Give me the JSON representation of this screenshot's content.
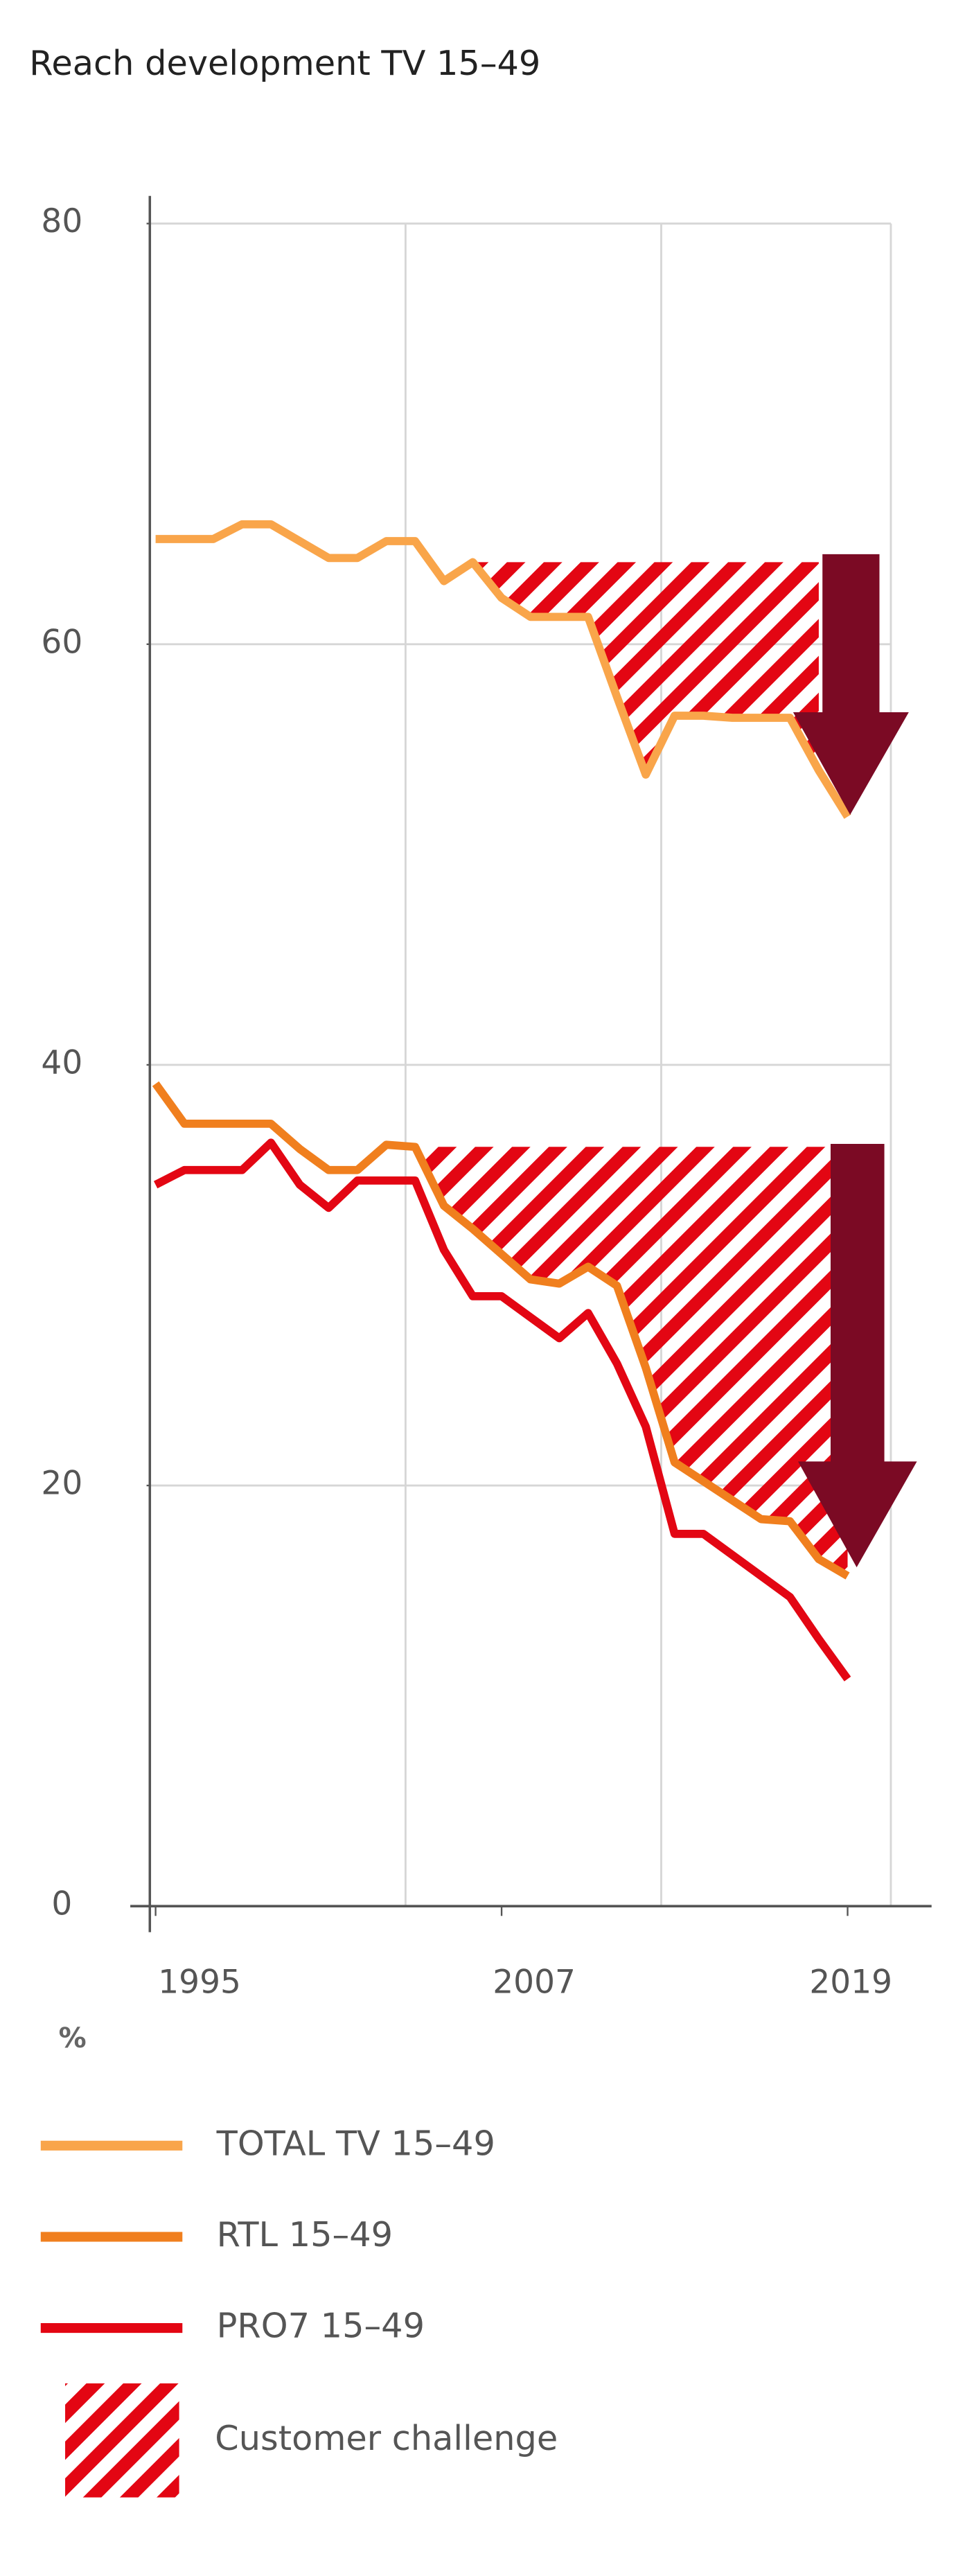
{
  "chart_data": {
    "type": "line",
    "title": "Reach development TV 15–49",
    "y_unit": "%",
    "x": [
      1995,
      1996,
      1997,
      1998,
      1999,
      2000,
      2001,
      2002,
      2003,
      2004,
      2005,
      2006,
      2007,
      2008,
      2009,
      2010,
      2011,
      2012,
      2013,
      2014,
      2015,
      2016,
      2017,
      2018,
      2019
    ],
    "xlim": [
      1994.8,
      2020.5
    ],
    "xticks": [
      1995,
      2007,
      2019
    ],
    "ylim": [
      0,
      80
    ],
    "yticks": [
      0,
      20,
      40,
      60,
      80
    ],
    "grid": true,
    "series": [
      {
        "name": "TOTAL TV 15–49",
        "color": "#f9a54a",
        "values": [
          65,
          65,
          65,
          65.7,
          65.7,
          64.9,
          64.1,
          64.1,
          64.9,
          64.9,
          63.0,
          63.9,
          62.2,
          61.3,
          61.3,
          61.3,
          57.5,
          53.8,
          56.6,
          56.6,
          56.5,
          56.5,
          56.5,
          54.0,
          51.8
        ]
      },
      {
        "name": "RTL 15–49",
        "color": "#f07f1e",
        "values": [
          39.1,
          37.2,
          37.2,
          37.2,
          37.2,
          36.0,
          35.0,
          35.0,
          36.2,
          36.1,
          33.3,
          32.2,
          31.0,
          29.8,
          29.6,
          30.4,
          29.5,
          25.6,
          21.1,
          20.2,
          19.3,
          18.4,
          18.3,
          16.5,
          15.7
        ]
      },
      {
        "name": "PRO7 15–49",
        "color": "#e30613",
        "values": [
          34.3,
          35.0,
          35.0,
          35.0,
          36.3,
          34.3,
          33.2,
          34.5,
          34.5,
          34.5,
          31.2,
          29.0,
          29.0,
          28.0,
          27.0,
          28.2,
          25.8,
          22.8,
          17.7,
          17.7,
          16.7,
          15.7,
          14.7,
          12.7,
          10.8
        ]
      }
    ],
    "hatch_label": "Customer challenge",
    "hatch_color": "#e30613",
    "arrow_color": "#7b0a24"
  }
}
